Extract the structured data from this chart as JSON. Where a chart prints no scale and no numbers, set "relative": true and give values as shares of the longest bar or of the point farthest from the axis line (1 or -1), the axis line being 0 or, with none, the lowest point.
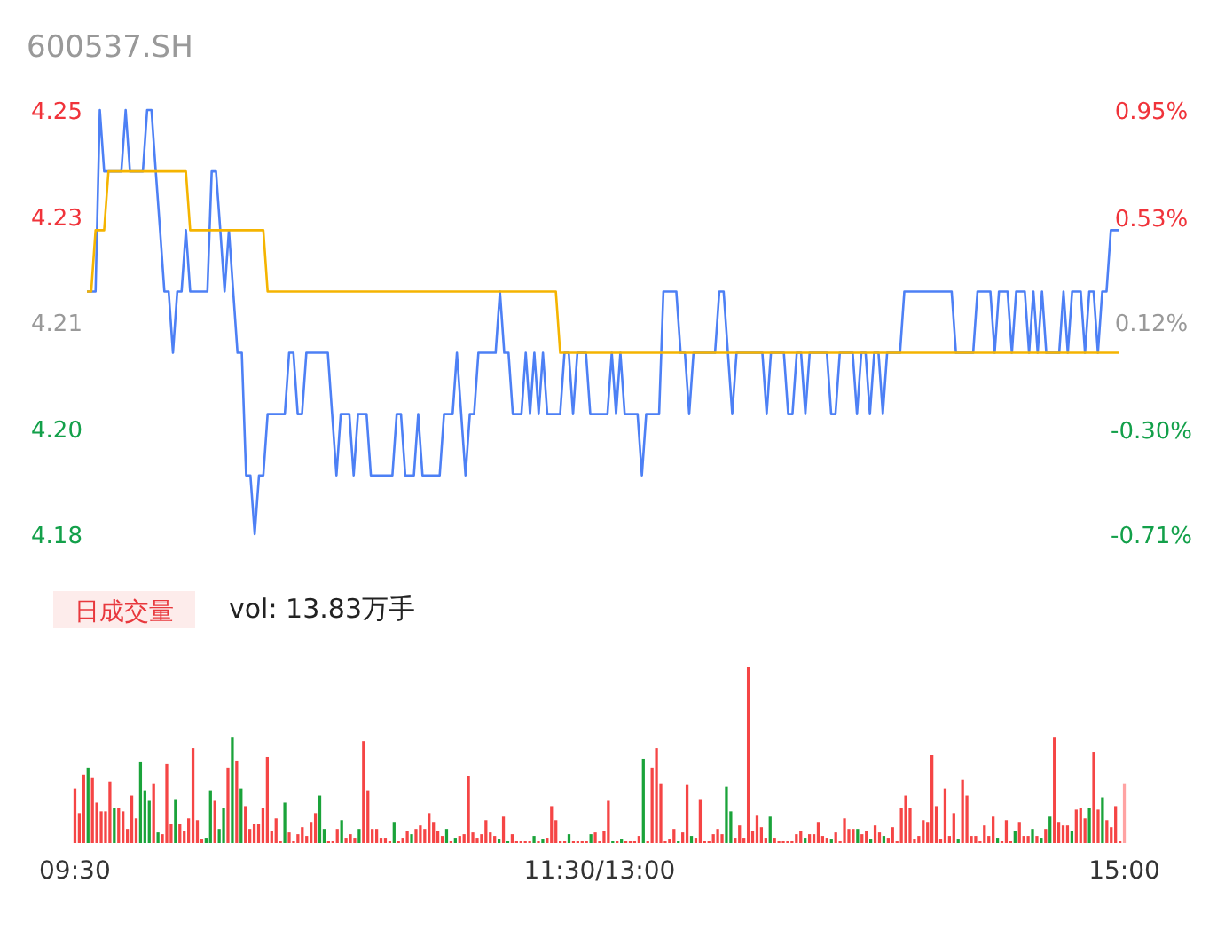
{
  "chart_data": [
    {
      "type": "line",
      "title": "600537.SH",
      "categories": [
        null,
        null,
        null,
        null,
        null,
        null,
        null,
        null,
        null,
        null,
        null,
        null,
        null,
        null,
        null,
        null,
        null,
        null,
        null,
        null,
        null,
        null,
        null,
        null,
        null,
        null,
        null,
        null,
        null,
        null,
        null,
        null,
        null,
        null,
        null,
        null,
        null,
        null,
        null,
        null,
        null,
        null,
        null,
        null,
        null,
        null,
        null,
        null,
        null,
        null,
        null,
        null,
        null,
        null,
        null,
        null,
        null,
        null,
        null,
        null,
        null,
        null,
        null,
        null,
        null,
        null,
        null,
        null,
        null,
        null,
        null,
        null,
        null,
        null,
        null,
        null,
        null,
        null,
        null,
        null,
        null,
        null,
        null,
        null,
        null,
        null,
        null,
        null,
        null,
        null,
        null,
        null,
        null,
        null,
        null,
        null,
        null,
        null,
        null,
        null,
        null,
        null,
        null,
        null,
        null,
        null,
        null,
        null,
        null,
        null,
        null,
        null,
        null,
        null,
        null,
        null,
        null,
        null,
        null,
        null,
        null,
        null,
        null,
        null,
        null,
        null,
        null,
        null,
        null,
        null,
        null,
        null,
        null,
        null,
        null,
        null,
        null,
        null,
        null,
        null,
        null,
        null,
        null,
        null,
        null,
        null,
        null,
        null,
        null,
        null,
        null,
        null,
        null,
        null,
        null,
        null,
        null,
        null,
        null,
        null,
        null,
        null,
        null,
        null,
        null,
        null,
        null,
        null,
        null,
        null,
        null,
        null,
        null,
        null,
        null,
        null,
        null,
        null,
        null,
        null,
        null,
        null,
        null,
        null,
        null,
        null,
        null,
        null,
        null,
        null,
        null,
        null,
        null,
        null,
        null,
        null,
        null,
        null,
        null,
        null,
        null,
        null,
        null,
        null,
        null,
        null,
        null,
        null,
        null,
        null,
        null,
        null,
        null,
        null,
        null,
        null,
        null,
        null,
        null,
        null,
        null,
        null,
        null,
        null,
        null,
        null,
        null,
        null,
        null,
        null,
        null,
        null,
        null,
        null,
        null,
        null,
        null,
        null,
        null,
        null,
        null
      ],
      "ylim": [
        4.18,
        4.25
      ],
      "yticks": [
        {
          "value": 4.25,
          "label": "4.25"
        },
        {
          "value": 4.2325,
          "label": "4.23"
        },
        {
          "value": 4.215,
          "label": "4.21"
        },
        {
          "value": 4.1975,
          "label": "4.20"
        },
        {
          "value": 4.18,
          "label": "4.18"
        }
      ],
      "y2lim": [
        -0.71,
        0.95
      ],
      "y2ticks": [
        {
          "value": 0.95,
          "label": "0.95%"
        },
        {
          "value": 0.53,
          "label": "0.53%"
        },
        {
          "value": 0.12,
          "label": "0.12%"
        },
        {
          "value": -0.3,
          "label": "-0.30%"
        },
        {
          "value": -0.71,
          "label": "-0.71%"
        }
      ],
      "tick_labels": "y",
      "series": [
        {
          "type": "line",
          "axis": "y2",
          "color": "#4d80f5",
          "values": [
            0.24,
            0.24,
            0.24,
            0.95,
            0.71,
            0.71,
            0.71,
            0.71,
            0.71,
            0.95,
            0.71,
            0.71,
            0.71,
            0.71,
            0.95,
            0.95,
            0.71,
            0.48,
            0.24,
            0.24,
            0,
            0.24,
            0.24,
            0.48,
            0.24,
            0.24,
            0.24,
            0.24,
            0.24,
            0.71,
            0.71,
            0.48,
            0.24,
            0.48,
            0.24,
            0,
            0,
            -0.48,
            -0.48,
            -0.71,
            -0.48,
            -0.48,
            -0.24,
            -0.24,
            -0.24,
            -0.24,
            -0.24,
            0,
            0,
            -0.24,
            -0.24,
            0,
            0,
            0,
            0,
            0,
            0,
            -0.24,
            -0.48,
            -0.24,
            -0.24,
            -0.24,
            -0.48,
            -0.24,
            -0.24,
            -0.24,
            -0.48,
            -0.48,
            -0.48,
            -0.48,
            -0.48,
            -0.48,
            -0.24,
            -0.24,
            -0.48,
            -0.48,
            -0.48,
            -0.24,
            -0.48,
            -0.48,
            -0.48,
            -0.48,
            -0.48,
            -0.24,
            -0.24,
            -0.24,
            0,
            -0.24,
            -0.48,
            -0.24,
            -0.24,
            0,
            0,
            0,
            0,
            0,
            0.24,
            0,
            0,
            -0.24,
            -0.24,
            -0.24,
            0,
            -0.24,
            0,
            -0.24,
            0,
            -0.24,
            -0.24,
            -0.24,
            -0.24,
            0,
            0,
            -0.24,
            0,
            0,
            0,
            -0.24,
            -0.24,
            -0.24,
            -0.24,
            -0.24,
            0,
            -0.24,
            0,
            -0.24,
            -0.24,
            -0.24,
            -0.24,
            -0.48,
            -0.24,
            -0.24,
            -0.24,
            -0.24,
            0.24,
            0.24,
            0.24,
            0.24,
            0,
            0,
            -0.24,
            0,
            0,
            0,
            0,
            0,
            0,
            0.24,
            0.24,
            0,
            -0.24,
            0,
            0,
            0,
            0,
            0,
            0,
            0,
            -0.24,
            0,
            0,
            0,
            0,
            -0.24,
            -0.24,
            0,
            0,
            -0.24,
            0,
            0,
            0,
            0,
            0,
            -0.24,
            -0.24,
            0,
            0,
            0,
            0,
            -0.24,
            0,
            0,
            -0.24,
            0,
            0,
            -0.24,
            0,
            0,
            0,
            0,
            0.24,
            0.24,
            0.24,
            0.24,
            0.24,
            0.24,
            0.24,
            0.24,
            0.24,
            0.24,
            0.24,
            0.24,
            0,
            0,
            0,
            0,
            0,
            0.24,
            0.24,
            0.24,
            0.24,
            0,
            0.24,
            0.24,
            0.24,
            0,
            0.24,
            0.24,
            0.24,
            0,
            0.24,
            0,
            0.24,
            0,
            0,
            0,
            0,
            0.24,
            0,
            0.24,
            0.24,
            0.24,
            0,
            0.24,
            0.24,
            0,
            0.24,
            0.24,
            0.48,
            0.48,
            0.48
          ]
        },
        {
          "type": "line",
          "axis": "y2",
          "color": "#f5b400",
          "values": [
            0.24,
            0.24,
            0.48,
            0.48,
            0.48,
            0.71,
            0.71,
            0.71,
            0.71,
            0.71,
            0.71,
            0.71,
            0.71,
            0.71,
            0.71,
            0.71,
            0.71,
            0.71,
            0.71,
            0.71,
            0.71,
            0.71,
            0.71,
            0.71,
            0.48,
            0.48,
            0.48,
            0.48,
            0.48,
            0.48,
            0.48,
            0.48,
            0.48,
            0.48,
            0.48,
            0.48,
            0.48,
            0.48,
            0.48,
            0.48,
            0.48,
            0.48,
            0.24,
            0.24,
            0.24,
            0.24,
            0.24,
            0.24,
            0.24,
            0.24,
            0.24,
            0.24,
            0.24,
            0.24,
            0.24,
            0.24,
            0.24,
            0.24,
            0.24,
            0.24,
            0.24,
            0.24,
            0.24,
            0.24,
            0.24,
            0.24,
            0.24,
            0.24,
            0.24,
            0.24,
            0.24,
            0.24,
            0.24,
            0.24,
            0.24,
            0.24,
            0.24,
            0.24,
            0.24,
            0.24,
            0.24,
            0.24,
            0.24,
            0.24,
            0.24,
            0.24,
            0.24,
            0.24,
            0.24,
            0.24,
            0.24,
            0.24,
            0.24,
            0.24,
            0.24,
            0.24,
            0.24,
            0.24,
            0.24,
            0.24,
            0.24,
            0.24,
            0.24,
            0.24,
            0.24,
            0.24,
            0.24,
            0.24,
            0.24,
            0.24,
            0,
            0,
            0,
            0,
            0,
            0,
            0,
            0,
            0,
            0,
            0,
            0,
            0,
            0,
            0,
            0,
            0,
            0,
            0,
            0,
            0,
            0,
            0,
            0,
            0,
            0,
            0,
            0,
            0,
            0,
            0,
            0,
            0,
            0,
            0,
            0,
            0,
            0,
            0,
            0,
            0,
            0,
            0,
            0,
            0,
            0,
            0,
            0,
            0,
            0,
            0,
            0,
            0,
            0,
            0,
            0,
            0,
            0,
            0,
            0,
            0,
            0,
            0,
            0,
            0,
            0,
            0,
            0,
            0,
            0,
            0,
            0,
            0,
            0,
            0,
            0,
            0,
            0,
            0,
            0,
            0,
            0,
            0,
            0,
            0,
            0,
            0,
            0,
            0,
            0,
            0,
            0,
            0,
            0,
            0,
            0,
            0,
            0,
            0,
            0,
            0,
            0,
            0,
            0,
            0,
            0,
            0,
            0,
            0,
            0,
            0,
            0,
            0,
            0,
            0,
            0,
            0,
            0,
            0,
            0,
            0,
            0,
            0,
            0,
            0,
            0,
            0,
            0,
            0,
            0,
            0
          ]
        }
      ]
    },
    {
      "type": "bar",
      "title": "日成交量",
      "subtitle": "vol: 13.83万手",
      "relative": true,
      "categories": [
        "09:30",
        null,
        null,
        null,
        null,
        null,
        null,
        null,
        null,
        null,
        null,
        null,
        null,
        null,
        null,
        null,
        null,
        null,
        null,
        null,
        null,
        null,
        null,
        null,
        null,
        null,
        null,
        null,
        null,
        null,
        null,
        null,
        null,
        null,
        null,
        null,
        null,
        null,
        null,
        null,
        null,
        null,
        null,
        null,
        null,
        null,
        null,
        null,
        null,
        null,
        null,
        null,
        null,
        null,
        null,
        null,
        null,
        null,
        null,
        null,
        null,
        null,
        null,
        null,
        null,
        null,
        null,
        null,
        null,
        null,
        null,
        null,
        null,
        null,
        null,
        null,
        null,
        null,
        null,
        null,
        null,
        null,
        null,
        null,
        null,
        null,
        null,
        null,
        null,
        null,
        null,
        null,
        null,
        null,
        null,
        null,
        null,
        null,
        null,
        null,
        null,
        null,
        null,
        null,
        null,
        null,
        null,
        null,
        null,
        null,
        null,
        null,
        null,
        null,
        null,
        null,
        null,
        null,
        null,
        null,
        "11:30/13:00",
        null,
        null,
        null,
        null,
        null,
        null,
        null,
        null,
        null,
        null,
        null,
        null,
        null,
        null,
        null,
        null,
        null,
        null,
        null,
        null,
        null,
        null,
        null,
        null,
        null,
        null,
        null,
        null,
        null,
        null,
        null,
        null,
        null,
        null,
        null,
        null,
        null,
        null,
        null,
        null,
        null,
        null,
        null,
        null,
        null,
        null,
        null,
        null,
        null,
        null,
        null,
        null,
        null,
        null,
        null,
        null,
        null,
        null,
        null,
        null,
        null,
        null,
        null,
        null,
        null,
        null,
        null,
        null,
        null,
        null,
        null,
        null,
        null,
        null,
        null,
        null,
        null,
        null,
        null,
        null,
        null,
        null,
        null,
        null,
        null,
        null,
        null,
        null,
        null,
        null,
        null,
        null,
        null,
        null,
        null,
        null,
        null,
        null,
        null,
        null,
        null,
        null,
        null,
        null,
        null,
        null,
        null,
        null,
        null,
        null,
        null,
        null,
        null,
        null,
        null,
        null,
        null,
        null,
        null,
        "15:00"
      ],
      "values": [
        0.31,
        0.17,
        0.39,
        0.43,
        0.37,
        0.23,
        0.18,
        0.18,
        0.35,
        0.2,
        0.2,
        0.18,
        0.08,
        0.27,
        0.14,
        0.46,
        0.3,
        0.24,
        0.34,
        0.06,
        0.05,
        0.45,
        0.11,
        0.25,
        0.11,
        0.07,
        0.14,
        0.54,
        0.13,
        0.02,
        0.03,
        0.3,
        0.24,
        0.08,
        0.2,
        0.43,
        0.6,
        0.47,
        0.31,
        0.21,
        0.08,
        0.11,
        0.11,
        0.2,
        0.49,
        0.07,
        0.14,
        0.01,
        0.23,
        0.06,
        0.01,
        0.05,
        0.09,
        0.04,
        0.12,
        0.17,
        0.27,
        0.08,
        0.01,
        0.01,
        0.08,
        0.13,
        0.03,
        0.05,
        0.03,
        0.08,
        0.58,
        0.3,
        0.08,
        0.08,
        0.03,
        0.03,
        0.01,
        0.12,
        0.01,
        0.03,
        0.07,
        0.05,
        0.08,
        0.1,
        0.08,
        0.17,
        0.12,
        0.07,
        0.04,
        0.08,
        0.01,
        0.03,
        0.04,
        0.05,
        0.38,
        0.06,
        0.03,
        0.05,
        0.13,
        0.06,
        0.04,
        0.02,
        0.15,
        0.01,
        0.05,
        0.01,
        0.01,
        0.01,
        0.01,
        0.04,
        0.01,
        0.02,
        0.03,
        0.21,
        0.13,
        0.01,
        0.01,
        0.05,
        0.01,
        0.01,
        0.01,
        0.01,
        0.05,
        0.06,
        0.01,
        0.07,
        0.24,
        0.01,
        0.01,
        0.02,
        0.01,
        0.01,
        0.01,
        0.04,
        0.48,
        0.01,
        0.43,
        0.54,
        0.34,
        0.01,
        0.02,
        0.08,
        0.01,
        0.06,
        0.33,
        0.04,
        0.03,
        0.25,
        0.01,
        0.01,
        0.05,
        0.08,
        0.05,
        0.32,
        0.18,
        0.03,
        0.1,
        0.03,
        1,
        0.07,
        0.16,
        0.09,
        0.03,
        0.15,
        0.03,
        0.01,
        0.01,
        0.01,
        0.01,
        0.05,
        0.07,
        0.03,
        0.05,
        0.05,
        0.12,
        0.04,
        0.03,
        0.02,
        0.06,
        0.01,
        0.14,
        0.08,
        0.08,
        0.08,
        0.05,
        0.07,
        0.02,
        0.1,
        0.06,
        0.04,
        0.03,
        0.09,
        0.01,
        0.2,
        0.27,
        0.2,
        0.02,
        0.04,
        0.13,
        0.12,
        0.5,
        0.21,
        0.02,
        0.31,
        0.04,
        0.17,
        0.02,
        0.36,
        0.27,
        0.04,
        0.04,
        0.01,
        0.1,
        0.04,
        0.15,
        0.03,
        0.01,
        0.13,
        0.01,
        0.07,
        0.12,
        0.04,
        0.04,
        0.08,
        0.04,
        0.03,
        0.08,
        0.15,
        0.6,
        0.12,
        0.1,
        0.1,
        0.07,
        0.19,
        0.2,
        0.14,
        0.2,
        0.52,
        0.19,
        0.26,
        0.13,
        0.09,
        0.21,
        0.01,
        0.34
      ],
      "colors": [
        "#f54545",
        "#f54545",
        "#f54545",
        "#1aa33a",
        "#f54545",
        "#f54545",
        "#f54545",
        "#f54545",
        "#f54545",
        "#1aa33a",
        "#f54545",
        "#f54545",
        "#f54545",
        "#f54545",
        "#f54545",
        "#1aa33a",
        "#1aa33a",
        "#1aa33a",
        "#f54545",
        "#1aa33a",
        "#f54545",
        "#f54545",
        "#f54545",
        "#1aa33a",
        "#f54545",
        "#f54545",
        "#f54545",
        "#f54545",
        "#f54545",
        "#f54545",
        "#1aa33a",
        "#1aa33a",
        "#f54545",
        "#1aa33a",
        "#1aa33a",
        "#f54545",
        "#1aa33a",
        "#f54545",
        "#1aa33a",
        "#f54545",
        "#f54545",
        "#f54545",
        "#f54545",
        "#f54545",
        "#f54545",
        "#f54545",
        "#f54545",
        "#f54545",
        "#1aa33a",
        "#f54545",
        "#f54545",
        "#f54545",
        "#f54545",
        "#f54545",
        "#f54545",
        "#f54545",
        "#1aa33a",
        "#1aa33a",
        "#f54545",
        "#f54545",
        "#f54545",
        "#1aa33a",
        "#f54545",
        "#f54545",
        "#f54545",
        "#1aa33a",
        "#f54545",
        "#f54545",
        "#f54545",
        "#f54545",
        "#f54545",
        "#f54545",
        "#f54545",
        "#1aa33a",
        "#f54545",
        "#f54545",
        "#f54545",
        "#1aa33a",
        "#f54545",
        "#f54545",
        "#f54545",
        "#f54545",
        "#f54545",
        "#f54545",
        "#f54545",
        "#1aa33a",
        "#f54545",
        "#1aa33a",
        "#f54545",
        "#f54545",
        "#f54545",
        "#f54545",
        "#f54545",
        "#f54545",
        "#f54545",
        "#f54545",
        "#f54545",
        "#1aa33a",
        "#f54545",
        "#1aa33a",
        "#f54545",
        "#f54545",
        "#f54545",
        "#f54545",
        "#f54545",
        "#1aa33a",
        "#f54545",
        "#1aa33a",
        "#f54545",
        "#f54545",
        "#f54545",
        "#f54545",
        "#f54545",
        "#1aa33a",
        "#f54545",
        "#f54545",
        "#f54545",
        "#f54545",
        "#1aa33a",
        "#f54545",
        "#f54545",
        "#f54545",
        "#f54545",
        "#1aa33a",
        "#f54545",
        "#1aa33a",
        "#f54545",
        "#f54545",
        "#f54545",
        "#f54545",
        "#1aa33a",
        "#f54545",
        "#f54545",
        "#f54545",
        "#f54545",
        "#f54545",
        "#f54545",
        "#f54545",
        "#1aa33a",
        "#f54545",
        "#f54545",
        "#1aa33a",
        "#f54545",
        "#f54545",
        "#f54545",
        "#f54545",
        "#f54545",
        "#f54545",
        "#f54545",
        "#1aa33a",
        "#1aa33a",
        "#f54545",
        "#f54545",
        "#f54545",
        "#f54545",
        "#f54545",
        "#f54545",
        "#f54545",
        "#f54545",
        "#1aa33a",
        "#f54545",
        "#f54545",
        "#f54545",
        "#f54545",
        "#f54545",
        "#f54545",
        "#f54545",
        "#1aa33a",
        "#f54545",
        "#f54545",
        "#f54545",
        "#f54545",
        "#f54545",
        "#1aa33a",
        "#f54545",
        "#f54545",
        "#f54545",
        "#f54545",
        "#f54545",
        "#1aa33a",
        "#f54545",
        "#f54545",
        "#1aa33a",
        "#f54545",
        "#f54545",
        "#1aa33a",
        "#f54545",
        "#f54545",
        "#f54545",
        "#f54545",
        "#f54545",
        "#f54545",
        "#f54545",
        "#f54545",
        "#f54545",
        "#f54545",
        "#f54545",
        "#f54545",
        "#f54545",
        "#f54545",
        "#f54545",
        "#f54545",
        "#1aa33a",
        "#f54545",
        "#f54545",
        "#f54545",
        "#f54545",
        "#f54545",
        "#f54545",
        "#f54545",
        "#f54545",
        "#1aa33a",
        "#f54545",
        "#f54545",
        "#f54545",
        "#1aa33a",
        "#f54545",
        "#f54545",
        "#f54545",
        "#1aa33a",
        "#f54545",
        "#1aa33a",
        "#f54545",
        "#1aa33a",
        "#f54545",
        "#f54545",
        "#f54545",
        "#f54545",
        "#1aa33a",
        "#f54545",
        "#f54545",
        "#f54545",
        "#1aa33a",
        "#f54545",
        "#f54545",
        "#1aa33a",
        "#f54545",
        "#f54545",
        "#f54545",
        "#f54545",
        "#ffa3a3"
      ]
    }
  ]
}
